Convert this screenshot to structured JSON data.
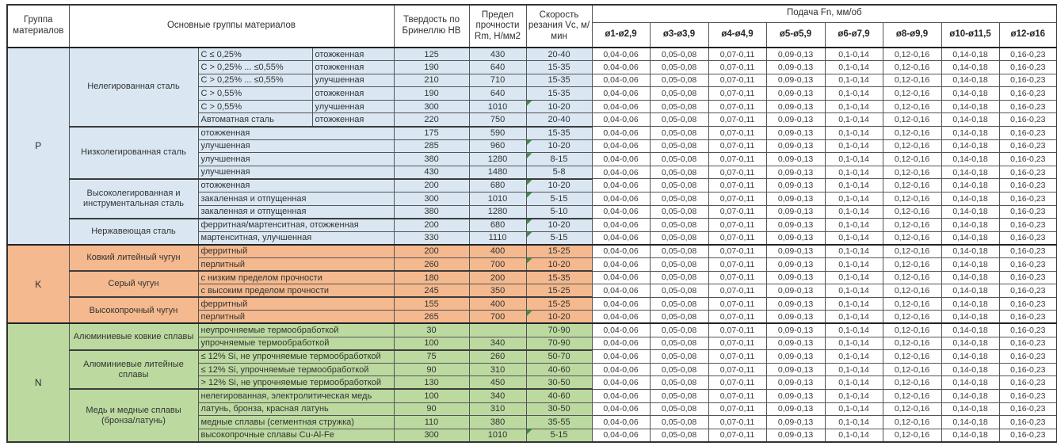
{
  "header": {
    "col_group": "Группа материалов",
    "col_main": "Основные группы материалов",
    "col_hb": "Твердость по Бринеллю HB",
    "col_rm": "Предел прочности Rm, Н/мм2",
    "col_vc": "Скорость резания Vc, м/мин",
    "feed_title": "Подача Fn, мм/об",
    "feed_cols": [
      "ø1-ø2,9",
      "ø3-ø3,9",
      "ø4-ø4,9",
      "ø5-ø5,9",
      "ø6-ø7,9",
      "ø8-ø9,9",
      "ø10-ø11,5",
      "ø12-ø16"
    ]
  },
  "feed_values": [
    "0,04-0,06",
    "0,05-0,08",
    "0,07-0,11",
    "0,09-0,13",
    "0,1-0,14",
    "0,12-0,16",
    "0,14-0,18",
    "0,16-0,23"
  ],
  "colors": {
    "P": "#DAE7F3",
    "K": "#F4B98E",
    "N": "#BCD9A0",
    "marker": "#3E9142"
  },
  "groups": [
    {
      "code": "P",
      "subgroups": [
        {
          "name": "Нелегированная сталь",
          "rows": [
            {
              "d1": "C ≤ 0,25%",
              "d2": "отожженная",
              "hb": "125",
              "rm": "430",
              "vc": "20-40",
              "m": false
            },
            {
              "d1": "C > 0,25% ... ≤0,55%",
              "d2": "отожженная",
              "hb": "190",
              "rm": "640",
              "vc": "15-35",
              "m": false
            },
            {
              "d1": "C > 0,25% ... ≤0,55%",
              "d2": "улучшенная",
              "hb": "210",
              "rm": "710",
              "vc": "15-35",
              "m": false
            },
            {
              "d1": "C > 0,55%",
              "d2": "отожженная",
              "hb": "190",
              "rm": "640",
              "vc": "15-35",
              "m": false
            },
            {
              "d1": "C > 0,55%",
              "d2": "улучшенная",
              "hb": "300",
              "rm": "1010",
              "vc": "10-20",
              "m": true
            },
            {
              "d1": "Автоматная сталь",
              "d2": "отожженная",
              "hb": "220",
              "rm": "750",
              "vc": "20-40",
              "m": false
            }
          ]
        },
        {
          "name": "Низколегированная сталь",
          "rows": [
            {
              "d": "отожженная",
              "hb": "175",
              "rm": "590",
              "vc": "15-35",
              "m": false
            },
            {
              "d": "улучшенная",
              "hb": "285",
              "rm": "960",
              "vc": "10-20",
              "m": true
            },
            {
              "d": "улучшенная",
              "hb": "380",
              "rm": "1280",
              "vc": "8-15",
              "m": true
            },
            {
              "d": "улучшенная",
              "hb": "430",
              "rm": "1480",
              "vc": "5-8",
              "m": false
            }
          ]
        },
        {
          "name": "Высоколегированная и инструментальная сталь",
          "rows": [
            {
              "d": "отожженная",
              "hb": "200",
              "rm": "680",
              "vc": "10-20",
              "m": true
            },
            {
              "d": "закаленная и отпущенная",
              "hb": "300",
              "rm": "1010",
              "vc": "5-15",
              "m": true
            },
            {
              "d": "закаленная и отпущенная",
              "hb": "380",
              "rm": "1280",
              "vc": "5-10",
              "m": false
            }
          ]
        },
        {
          "name": "Нержавеющая сталь",
          "rows": [
            {
              "d": "ферритная/мартенситная, отожженная",
              "hb": "200",
              "rm": "680",
              "vc": "10-20",
              "m": true
            },
            {
              "d": "мартенситная, улучшенная",
              "hb": "330",
              "rm": "1110",
              "vc": "5-15",
              "m": true
            }
          ]
        }
      ]
    },
    {
      "code": "K",
      "subgroups": [
        {
          "name": "Ковкий литейный чугун",
          "rows": [
            {
              "d": "ферритный",
              "hb": "200",
              "rm": "400",
              "vc": "15-25",
              "m": false
            },
            {
              "d": "перлитный",
              "hb": "260",
              "rm": "700",
              "vc": "10-20",
              "m": true
            }
          ]
        },
        {
          "name": "Серый чугун",
          "rows": [
            {
              "d": "с низким пределом прочности",
              "hb": "180",
              "rm": "200",
              "vc": "15-35",
              "m": false
            },
            {
              "d": "с высоким пределом прочности",
              "hb": "245",
              "rm": "350",
              "vc": "15-25",
              "m": false
            }
          ]
        },
        {
          "name": "Высокопрочный чугун",
          "rows": [
            {
              "d": "ферритный",
              "hb": "155",
              "rm": "400",
              "vc": "15-25",
              "m": false
            },
            {
              "d": "перлитный",
              "hb": "265",
              "rm": "700",
              "vc": "10-20",
              "m": true
            }
          ]
        }
      ]
    },
    {
      "code": "N",
      "subgroups": [
        {
          "name": "Алюминиевые ковкие сплавы",
          "rows": [
            {
              "d": "неупрочняемые термообработкой",
              "hb": "30",
              "rm": "",
              "vc": "70-90",
              "m": false
            },
            {
              "d": "упрочняемые термообработкой",
              "hb": "100",
              "rm": "340",
              "vc": "70-90",
              "m": false
            }
          ]
        },
        {
          "name": "Алюминиевые литейные сплавы",
          "rows": [
            {
              "d": "≤ 12% Si, не упрочняемые термообработкой",
              "hb": "75",
              "rm": "260",
              "vc": "50-70",
              "m": false
            },
            {
              "d": "≤ 12% Si, упрочняемые термообработкой",
              "hb": "90",
              "rm": "310",
              "vc": "40-60",
              "m": false
            },
            {
              "d": "> 12% Si, не упрочняемые термообработкой",
              "hb": "130",
              "rm": "450",
              "vc": "30-50",
              "m": false
            }
          ]
        },
        {
          "name": "Медь и медные сплавы (бронза/латунь)",
          "rows": [
            {
              "d": "нелегированная, электролитическая медь",
              "hb": "100",
              "rm": "340",
              "vc": "40-60",
              "m": false
            },
            {
              "d": "латунь, бронза, красная латунь",
              "hb": "90",
              "rm": "310",
              "vc": "30-50",
              "m": false
            },
            {
              "d": "медные сплавы (сегментная стружка)",
              "hb": "110",
              "rm": "380",
              "vc": "35-55",
              "m": false
            },
            {
              "d": "высокопрочные сплавы Cu-Al-Fe",
              "hb": "300",
              "rm": "1010",
              "vc": "5-15",
              "m": true
            }
          ]
        }
      ]
    }
  ]
}
